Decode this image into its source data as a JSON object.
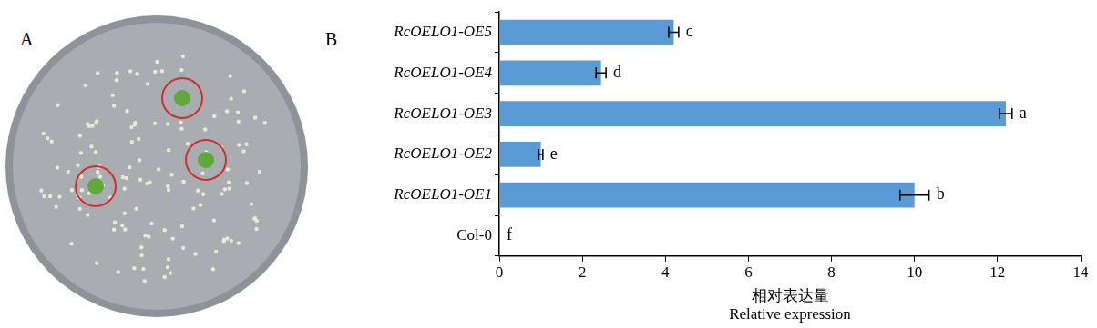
{
  "panel_labels": [
    "A",
    "B"
  ],
  "chart_data": {
    "type": "bar",
    "orientation": "horizontal",
    "categories": [
      "RcOELO1-OE5",
      "RcOELO1-OE4",
      "RcOELO1-OE3",
      "RcOELO1-OE2",
      "RcOELO1-OE1",
      "Col-0"
    ],
    "values": [
      4.2,
      2.45,
      12.2,
      1.0,
      10.0,
      0
    ],
    "errors": [
      0.12,
      0.12,
      0.15,
      0.05,
      0.35,
      0
    ],
    "annotations": [
      "c",
      "d",
      "a",
      "e",
      "b",
      "f"
    ],
    "color": "#5b9bd5",
    "xlabel": [
      "相对表达量",
      "Relative expression"
    ],
    "xlim": [
      0,
      14
    ],
    "xticks": [
      0,
      2,
      4,
      6,
      8,
      10,
      12,
      14
    ],
    "grid": false
  }
}
